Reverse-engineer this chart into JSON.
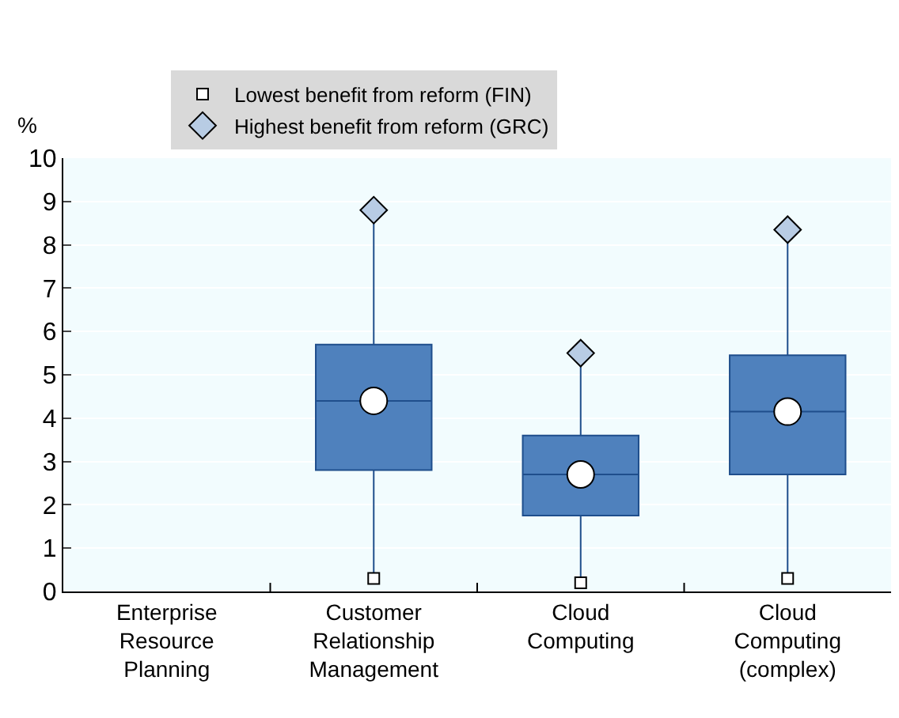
{
  "chart_data": {
    "type": "box",
    "ylabel": "%",
    "categories": [
      "Enterprise Resource Planning",
      "Customer Relationship Management",
      "Cloud Computing",
      "Cloud Computing (complex)"
    ],
    "boxes": [
      null,
      {
        "low": 0.3,
        "q1": 2.8,
        "median": 4.4,
        "q3": 5.7,
        "high": 8.8
      },
      {
        "low": 0.2,
        "q1": 1.75,
        "median": 2.7,
        "q3": 3.6,
        "high": 5.5
      },
      {
        "low": 0.3,
        "q1": 2.7,
        "median": 4.15,
        "q3": 5.45,
        "high": 8.35
      }
    ],
    "color": "#4f81bd",
    "series": [
      {
        "type": "scatter",
        "marker": "circle",
        "color": "#ffffff",
        "x": [
          "Customer Relationship Management",
          "Cloud Computing",
          "Cloud Computing (complex)"
        ],
        "values": [
          4.4,
          2.7,
          4.15
        ]
      },
      {
        "name": "Lowest benefit from reform (FIN)",
        "type": "scatter",
        "marker": "square",
        "color": "#ffffff",
        "x": [
          "Customer Relationship Management",
          "Cloud Computing",
          "Cloud Computing (complex)"
        ],
        "values": [
          0.3,
          0.2,
          0.3
        ]
      },
      {
        "name": "Highest benefit from reform (GRC)",
        "type": "scatter",
        "marker": "diamond",
        "color": "#b8cce4",
        "x": [
          "Customer Relationship Management",
          "Cloud Computing",
          "Cloud Computing (complex)"
        ],
        "values": [
          8.8,
          5.5,
          8.35
        ]
      }
    ],
    "ylim": [
      0,
      10
    ],
    "yticks": [
      0,
      1,
      2,
      3,
      4,
      5,
      6,
      7,
      8,
      9,
      10
    ],
    "grid": "y",
    "legend": "top"
  }
}
